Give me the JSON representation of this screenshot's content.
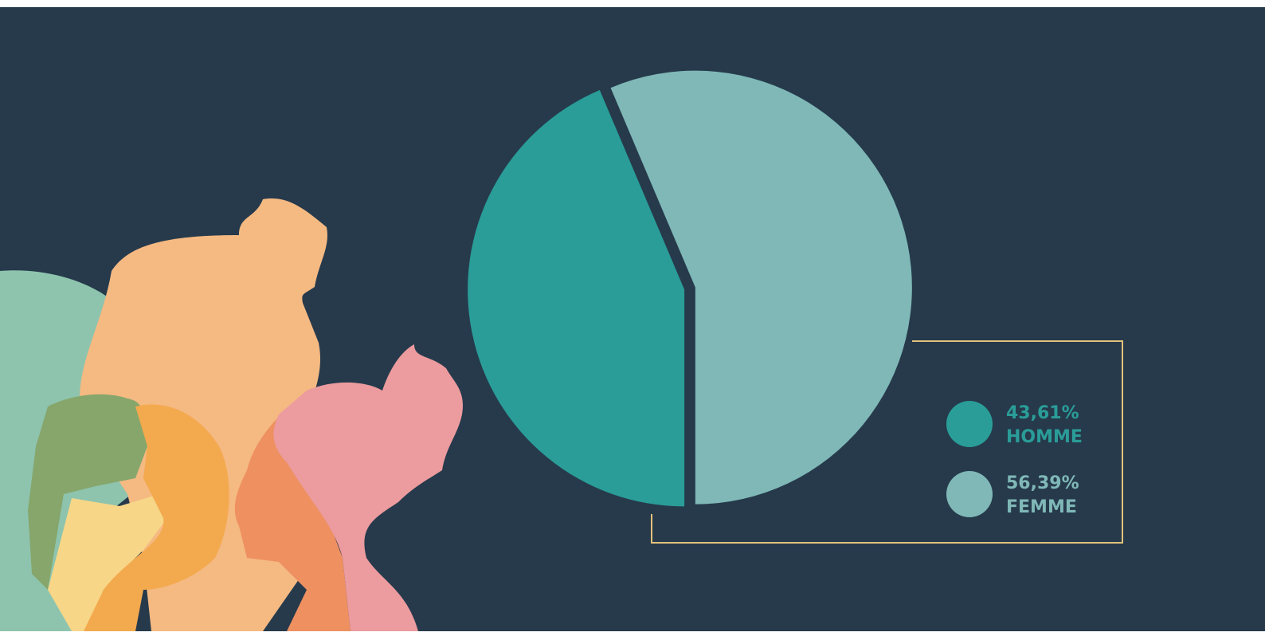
{
  "chart_data": {
    "type": "pie",
    "categories": [
      "HOMME",
      "FEMME"
    ],
    "values": [
      43.61,
      56.39
    ],
    "value_labels": [
      "43,61%",
      "56,39%"
    ],
    "colors": [
      "#2a9d98",
      "#7fb8b7"
    ]
  }
}
